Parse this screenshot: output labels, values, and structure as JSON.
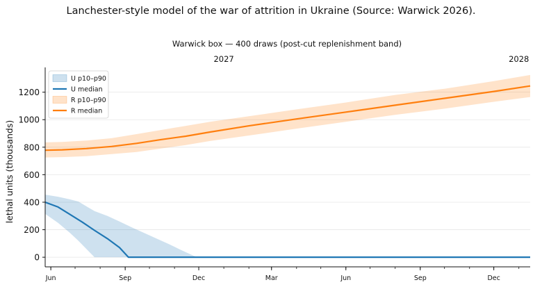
{
  "title": "Lanchester-style model of the war of attrition in Ukraine (Source: Warwick 2026).",
  "chart_data": {
    "type": "area",
    "title": "Lanchester-style model of the war of attrition in Ukraine (Source: Warwick 2026).",
    "subtitle": "Warwick box — 400 draws (post-cut replenishment band)",
    "xlabel": "",
    "ylabel": "lethal units (thousands)",
    "x_start": "2026-05-25",
    "x_end": "2028-01-15",
    "xticks": [
      {
        "label": "Jun",
        "date": "2026-06-01"
      },
      {
        "label": "Sep",
        "date": "2026-09-01"
      },
      {
        "label": "Dec",
        "date": "2026-12-01"
      },
      {
        "label": "Mar",
        "date": "2027-03-01"
      },
      {
        "label": "Jun",
        "date": "2027-06-01"
      },
      {
        "label": "Sep",
        "date": "2027-09-01"
      },
      {
        "label": "Dec",
        "date": "2027-12-01"
      }
    ],
    "year_labels": [
      {
        "label": "2027",
        "date": "2027-01-01"
      },
      {
        "label": "2028",
        "date": "2028-01-01"
      }
    ],
    "ylim": [
      -70,
      1380
    ],
    "yticks": [
      0,
      200,
      400,
      600,
      800,
      1000,
      1200
    ],
    "grid": true,
    "legend_position": "top-left",
    "series": [
      {
        "name": "U p10–p90",
        "kind": "band",
        "color": "#1f77b4",
        "x": [
          "2026-05-25",
          "2026-06-10",
          "2026-06-25",
          "2026-07-05",
          "2026-07-15",
          "2026-07-25",
          "2026-08-10",
          "2026-08-25",
          "2026-09-10",
          "2026-09-25",
          "2026-10-10",
          "2026-10-25",
          "2026-11-10",
          "2026-11-25",
          "2026-11-30",
          "2026-12-10",
          "2027-06-01",
          "2028-01-15"
        ],
        "low": [
          315,
          250,
          175,
          120,
          60,
          0,
          0,
          0,
          0,
          0,
          0,
          0,
          0,
          0,
          0,
          0,
          0,
          0
        ],
        "high": [
          455,
          440,
          420,
          405,
          370,
          335,
          300,
          260,
          215,
          175,
          135,
          95,
          50,
          10,
          0,
          0,
          0,
          0
        ]
      },
      {
        "name": "U median",
        "kind": "line",
        "color": "#1f77b4",
        "x": [
          "2026-05-25",
          "2026-06-10",
          "2026-06-25",
          "2026-07-10",
          "2026-07-25",
          "2026-08-10",
          "2026-08-25",
          "2026-09-05",
          "2026-12-01",
          "2028-01-15"
        ],
        "values": [
          400,
          365,
          310,
          255,
          195,
          135,
          70,
          0,
          0,
          0
        ]
      },
      {
        "name": "R p10–p90",
        "kind": "band",
        "color": "#ff7f0e",
        "x": [
          "2026-05-25",
          "2026-06-15",
          "2026-07-15",
          "2026-08-15",
          "2026-09-15",
          "2026-10-15",
          "2026-11-15",
          "2026-12-15",
          "2027-02-01",
          "2027-04-01",
          "2027-06-01",
          "2027-08-01",
          "2027-10-01",
          "2027-12-01",
          "2028-01-15"
        ],
        "low": [
          725,
          728,
          735,
          750,
          765,
          790,
          815,
          845,
          885,
          935,
          985,
          1035,
          1080,
          1130,
          1165
        ],
        "high": [
          835,
          838,
          848,
          865,
          895,
          925,
          955,
          985,
          1025,
          1075,
          1125,
          1180,
          1225,
          1280,
          1325
        ]
      },
      {
        "name": "R median",
        "kind": "line",
        "color": "#ff7f0e",
        "x": [
          "2026-05-25",
          "2026-06-15",
          "2026-07-15",
          "2026-08-15",
          "2026-09-15",
          "2026-10-15",
          "2026-11-15",
          "2026-12-15",
          "2027-02-01",
          "2027-04-01",
          "2027-06-01",
          "2027-08-01",
          "2027-10-01",
          "2027-12-01",
          "2028-01-15"
        ],
        "values": [
          778,
          781,
          790,
          805,
          828,
          855,
          880,
          910,
          955,
          1005,
          1055,
          1105,
          1155,
          1205,
          1245
        ]
      }
    ]
  }
}
